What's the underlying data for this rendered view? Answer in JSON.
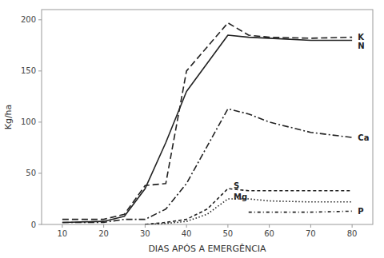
{
  "chart_data": {
    "type": "line",
    "xlabel": "DIAS APÓS A EMERGÊNCIA",
    "ylabel": "Kg/ha",
    "xlim": [
      5,
      85
    ],
    "ylim": [
      0,
      210
    ],
    "xticks": [
      10,
      20,
      30,
      40,
      50,
      60,
      70,
      80
    ],
    "yticks": [
      0,
      50,
      100,
      150,
      200
    ],
    "grid": false,
    "series": [
      {
        "name": "K",
        "color": "#222222",
        "line_style": "long_dash",
        "x": [
          10,
          20,
          25,
          30,
          35,
          40,
          50,
          55,
          60,
          70,
          80
        ],
        "values": [
          5,
          5,
          10,
          38,
          40,
          150,
          197,
          185,
          183,
          182,
          183
        ],
        "label_at": [
          81,
          183
        ]
      },
      {
        "name": "N",
        "color": "#222222",
        "line_style": "solid",
        "x": [
          10,
          20,
          25,
          30,
          35,
          40,
          50,
          55,
          60,
          70,
          80
        ],
        "values": [
          2,
          3,
          8,
          35,
          80,
          130,
          185,
          183,
          182,
          180,
          180
        ],
        "label_at": [
          81,
          178
        ]
      },
      {
        "name": "Ca",
        "color": "#222222",
        "line_style": "dash_dot",
        "x": [
          10,
          20,
          25,
          30,
          35,
          40,
          50,
          55,
          60,
          70,
          80
        ],
        "values": [
          2,
          2,
          5,
          5,
          15,
          40,
          113,
          108,
          100,
          90,
          85
        ],
        "label_at": [
          81,
          85
        ]
      },
      {
        "name": "S",
        "color": "#222222",
        "line_style": "dashed",
        "x": [
          30,
          35,
          40,
          45,
          50,
          55,
          60,
          70,
          80
        ],
        "values": [
          0,
          2,
          5,
          15,
          35,
          33,
          33,
          33,
          33
        ],
        "label_at": [
          51,
          38
        ]
      },
      {
        "name": "Mg",
        "color": "#222222",
        "line_style": "dotted",
        "x": [
          30,
          35,
          40,
          45,
          50,
          55,
          60,
          70,
          80
        ],
        "values": [
          0,
          1,
          3,
          10,
          25,
          25,
          23,
          22,
          22
        ],
        "label_at": [
          51,
          27
        ]
      },
      {
        "name": "P",
        "color": "#222222",
        "line_style": "short_dash_dot",
        "x": [
          55,
          60,
          70,
          80
        ],
        "values": [
          12,
          12,
          12,
          13
        ],
        "label_at": [
          81,
          13
        ]
      }
    ]
  }
}
